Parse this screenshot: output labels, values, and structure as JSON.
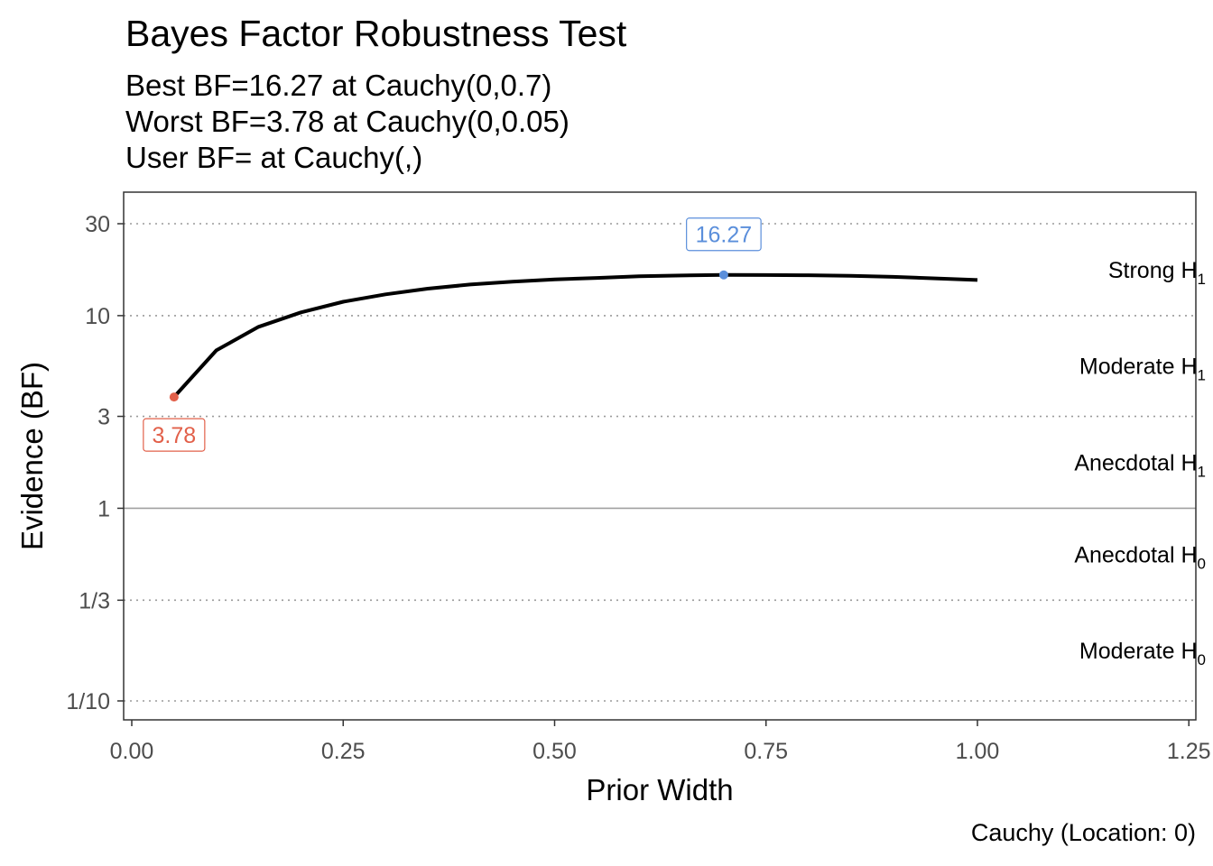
{
  "title": "Bayes Factor Robustness Test",
  "subtitle_lines": [
    "Best BF=16.27 at Cauchy(0,0.7)",
    "Worst BF=3.78 at Cauchy(0,0.05)",
    "User BF= at Cauchy(,)"
  ],
  "caption": "Cauchy (Location: 0)",
  "chart_data": {
    "type": "line",
    "xlabel": "Prior Width",
    "ylabel": "Evidence (BF)",
    "y_scale": "log",
    "xlim": [
      -0.02,
      1.25
    ],
    "ylim": [
      0.08,
      40
    ],
    "x_ticks": [
      {
        "value": 0.0,
        "label": "0.00"
      },
      {
        "value": 0.25,
        "label": "0.25"
      },
      {
        "value": 0.5,
        "label": "0.50"
      },
      {
        "value": 0.75,
        "label": "0.75"
      },
      {
        "value": 1.0,
        "label": "1.00"
      },
      {
        "value": 1.25,
        "label": "1.25"
      }
    ],
    "y_ticks": [
      {
        "value": 30,
        "label": "30"
      },
      {
        "value": 10,
        "label": "10"
      },
      {
        "value": 3,
        "label": "3"
      },
      {
        "value": 1,
        "label": "1"
      },
      {
        "value": 0.3333,
        "label": "1/3"
      },
      {
        "value": 0.1,
        "label": "1/10"
      }
    ],
    "gridlines_dotted": [
      30,
      10,
      3,
      0.3333,
      0.1
    ],
    "reference_line": 1,
    "series": [
      {
        "x": [
          0.05,
          0.1,
          0.15,
          0.2,
          0.25,
          0.3,
          0.35,
          0.4,
          0.45,
          0.5,
          0.55,
          0.6,
          0.65,
          0.7,
          0.75,
          0.8,
          0.85,
          0.9,
          0.95,
          1.0
        ],
        "y": [
          3.78,
          6.6,
          8.75,
          10.4,
          11.8,
          12.9,
          13.8,
          14.5,
          15.0,
          15.4,
          15.7,
          16.0,
          16.15,
          16.27,
          16.25,
          16.2,
          16.1,
          15.9,
          15.6,
          15.3
        ],
        "color": "#000000"
      }
    ],
    "highlights": [
      {
        "kind": "best",
        "x": 0.7,
        "y": 16.27,
        "label": "16.27",
        "color": "#5b8fdb",
        "label_side": "above"
      },
      {
        "kind": "worst",
        "x": 0.05,
        "y": 3.78,
        "label": "3.78",
        "color": "#e2604a",
        "label_side": "below"
      }
    ],
    "region_labels": [
      {
        "text": "Strong H",
        "sub": "1",
        "y": 17.3
      },
      {
        "text": "Moderate H",
        "sub": "1",
        "y": 5.48
      },
      {
        "text": "Anecdotal H",
        "sub": "1",
        "y": 1.73
      },
      {
        "text": "Anecdotal H",
        "sub": "0",
        "y": 0.577
      },
      {
        "text": "Moderate H",
        "sub": "0",
        "y": 0.183
      }
    ],
    "region_label_x": 1.27
  }
}
